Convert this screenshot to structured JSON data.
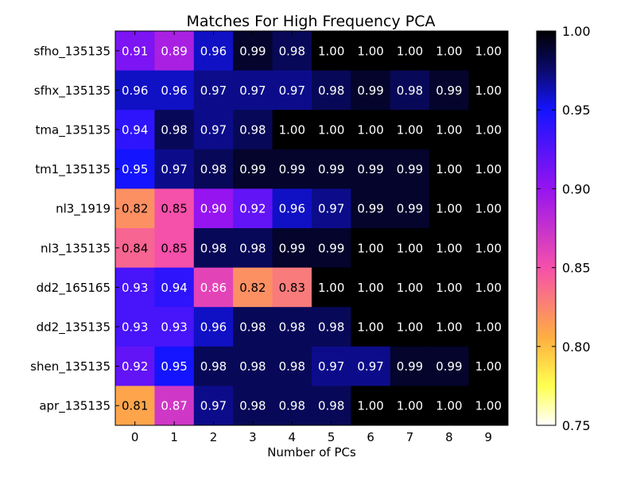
{
  "chart_data": {
    "type": "heatmap",
    "title": "Matches For High Frequency PCA",
    "xlabel": "Number of PCs",
    "ylabel": "",
    "x_categories": [
      "0",
      "1",
      "2",
      "3",
      "4",
      "5",
      "6",
      "7",
      "8",
      "9"
    ],
    "y_categories": [
      "sfho_135135",
      "sfhx_135135",
      "tma_135135",
      "tm1_135135",
      "nl3_1919",
      "nl3_135135",
      "dd2_165165",
      "dd2_135135",
      "shen_135135",
      "apr_135135"
    ],
    "values": [
      [
        0.91,
        0.89,
        0.96,
        0.99,
        0.98,
        1.0,
        1.0,
        1.0,
        1.0,
        1.0
      ],
      [
        0.96,
        0.96,
        0.97,
        0.97,
        0.97,
        0.98,
        0.99,
        0.98,
        0.99,
        1.0
      ],
      [
        0.94,
        0.98,
        0.97,
        0.98,
        1.0,
        1.0,
        1.0,
        1.0,
        1.0,
        1.0
      ],
      [
        0.95,
        0.97,
        0.98,
        0.99,
        0.99,
        0.99,
        0.99,
        0.99,
        1.0,
        1.0
      ],
      [
        0.82,
        0.85,
        0.9,
        0.92,
        0.96,
        0.97,
        0.99,
        0.99,
        1.0,
        1.0
      ],
      [
        0.84,
        0.85,
        0.98,
        0.98,
        0.99,
        0.99,
        1.0,
        1.0,
        1.0,
        1.0
      ],
      [
        0.93,
        0.94,
        0.86,
        0.82,
        0.83,
        1.0,
        1.0,
        1.0,
        1.0,
        1.0
      ],
      [
        0.93,
        0.93,
        0.96,
        0.98,
        0.98,
        0.98,
        1.0,
        1.0,
        1.0,
        1.0
      ],
      [
        0.92,
        0.95,
        0.98,
        0.98,
        0.98,
        0.97,
        0.97,
        0.99,
        0.99,
        1.0
      ],
      [
        0.81,
        0.87,
        0.97,
        0.98,
        0.98,
        0.98,
        1.0,
        1.0,
        1.0,
        1.0
      ]
    ],
    "colorbar": {
      "range": [
        0.75,
        1.0
      ],
      "ticks": [
        "0.75",
        "0.80",
        "0.85",
        "0.90",
        "0.95",
        "1.00"
      ],
      "colormap": "gnuplot2_r"
    }
  }
}
